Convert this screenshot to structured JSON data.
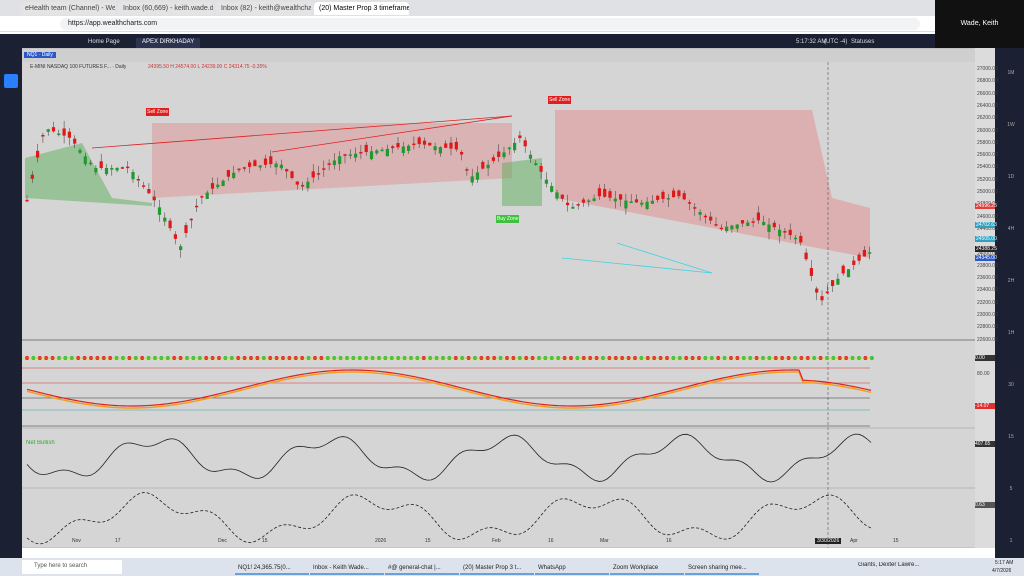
{
  "browser": {
    "tabs": [
      "eHealth team (Channel) - Wealth C...",
      "Inbox (60,669) - keith.wade.dba@...",
      "Inbox (82) - keith@wealthcharts.c...",
      "(20) Master Prop 3 timeframes - Y..."
    ],
    "url": "https://app.wealthcharts.com",
    "user": "Wade, Keith"
  },
  "app": {
    "tabs": [
      "Home Page",
      "APEX DIRKHADAY"
    ],
    "time": "5:17:32 AM",
    "timezone": "(UTC -4)",
    "status": "Statuses"
  },
  "chart": {
    "symbol": "NQ1 · Daily",
    "title": "E-MINI NASDAQ 100 FUTURES F... · Daily",
    "ohlc": "24395.50 H 24574.00 L 24239.00 C 24314.75 -0.35%",
    "zones": [
      "Sell Zone",
      "Sell Zone",
      "Buy Zone"
    ],
    "price_axis": [
      "27000.00",
      "26800.00",
      "26600.00",
      "26400.00",
      "26200.00",
      "26000.00",
      "25800.00",
      "25600.00",
      "25400.00",
      "25200.00",
      "25000.00",
      "24800.00",
      "24600.00",
      "24400.00",
      "24200.00",
      "24000.00",
      "23800.00",
      "23600.00",
      "23400.00",
      "23200.00",
      "23000.00",
      "22800.00",
      "22600.00"
    ],
    "price_markers": [
      "24996.25",
      "24702.63",
      "24505.00",
      "24388.25",
      "24345.00"
    ],
    "time_axis": [
      "Nov",
      "17",
      "Dec",
      "15",
      "2026",
      "15",
      "Feb",
      "16",
      "Mar",
      "16",
      "3/30/2026",
      "Apr",
      "15"
    ],
    "timeframes": [
      "1M",
      "1W",
      "1D",
      "4H",
      "2H",
      "1H",
      "30",
      "15",
      "5",
      "1"
    ],
    "indicators": {
      "dots_value": "0.00",
      "osc_top": "80.00",
      "osc_value": "-14.07",
      "panel3_label": "Net Bullish",
      "panel3_value": "407.65",
      "panel4_value": "0.63"
    }
  },
  "taskbar": {
    "search": "Type here to search",
    "apps": [
      "NQ1! 24,365.75(0...",
      "Inbox - Keith Wade...",
      "#@ general-chat |...",
      "(20) Master Prop 3 t...",
      "WhatsApp",
      "Zoom Workplace",
      "Screen sharing mee..."
    ],
    "weather": "Giants, Dexter Lawre...",
    "clock": "5:17 AM",
    "date": "4/7/2026"
  }
}
